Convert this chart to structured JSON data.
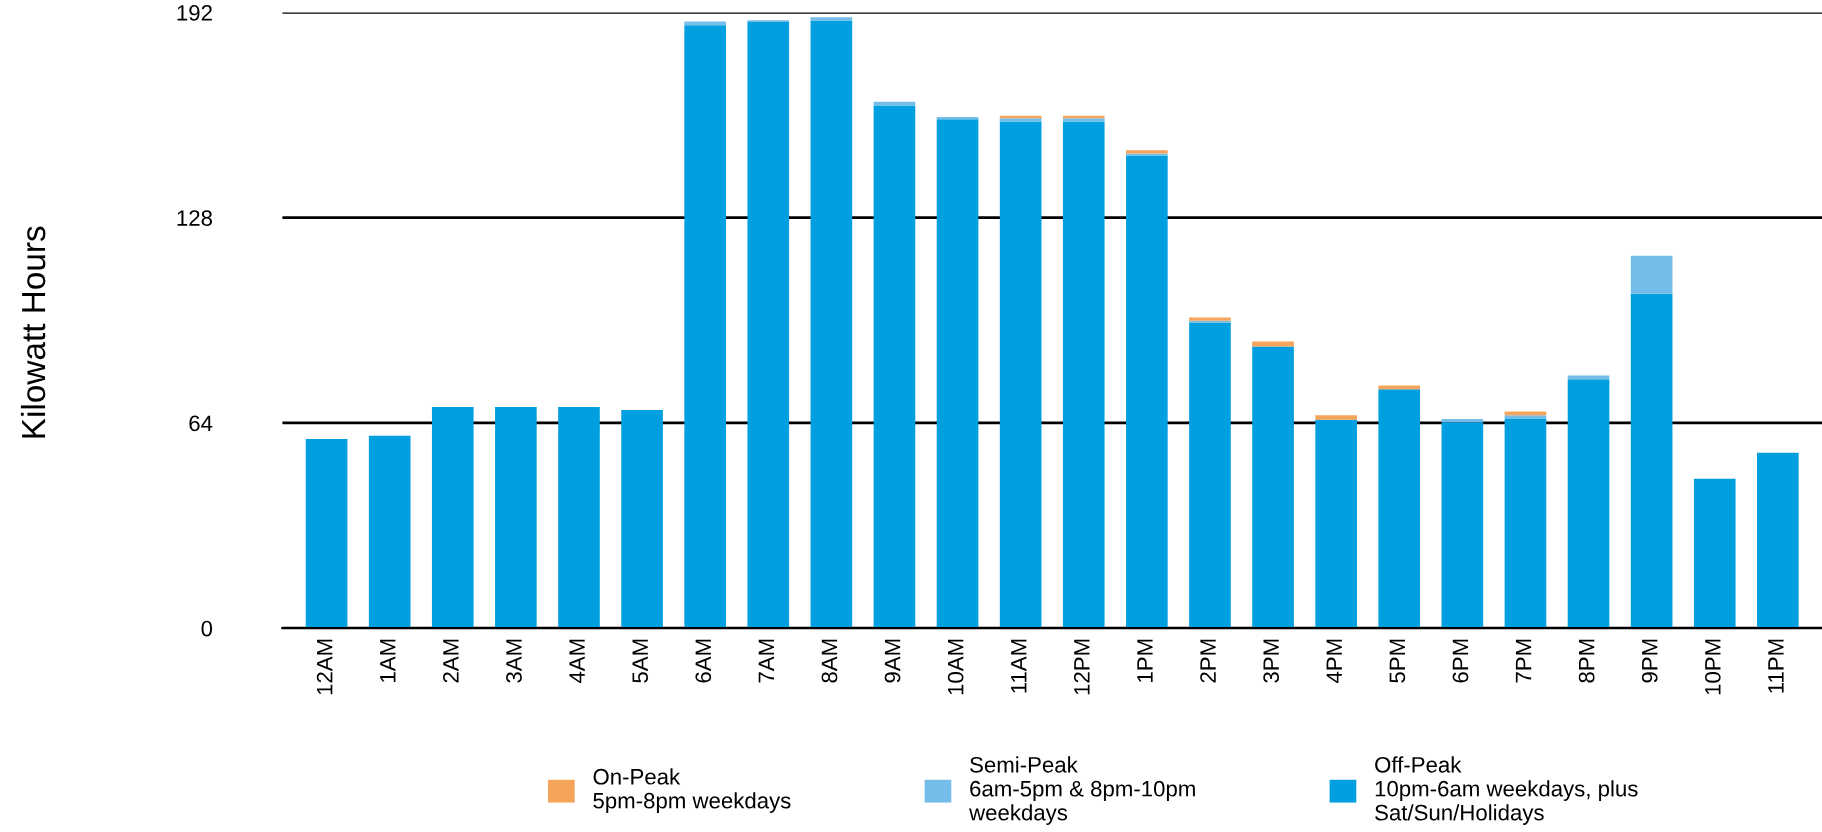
{
  "chart_data": {
    "type": "bar",
    "stacked": true,
    "ylabel": "Kilowatt Hours",
    "categories": [
      "12AM",
      "1AM",
      "2AM",
      "3AM",
      "4AM",
      "5AM",
      "6AM",
      "7AM",
      "8AM",
      "9AM",
      "10AM",
      "11AM",
      "12PM",
      "1PM",
      "2PM",
      "3PM",
      "4PM",
      "5PM",
      "6PM",
      "7PM",
      "8PM",
      "9PM",
      "10PM",
      "11PM"
    ],
    "series": [
      {
        "name": "Off-Peak\n10pm-6am weekdays, plus\nSat/Sun/Holidays",
        "color": "#009fe0",
        "values": [
          59,
          60,
          69,
          69,
          69,
          68,
          188,
          189,
          189.5,
          163,
          158.7,
          158,
          158,
          147.4,
          95.3,
          87.8,
          65,
          74.5,
          64.2,
          65.2,
          77.6,
          104.3,
          46.6,
          54.7
        ]
      },
      {
        "name": "Semi-Peak\n6am-5pm & 8pm-10pm\nweekdays",
        "color": "#74bde8",
        "values": [
          0,
          0,
          0,
          0,
          0,
          0,
          1.2,
          0.6,
          1,
          1.2,
          0.7,
          1,
          1,
          0.6,
          0.6,
          0,
          0,
          0,
          1,
          1.2,
          1.2,
          11.8,
          0,
          0
        ]
      },
      {
        "name": "On-Peak\n5pm-8pm weekdays",
        "color": "#f5a55a",
        "values": [
          0,
          0,
          0,
          0,
          0,
          0,
          0,
          0,
          0,
          0,
          0,
          0.8,
          0.8,
          1,
          1,
          1.6,
          1.4,
          1.2,
          0,
          1.2,
          0,
          0,
          0,
          0
        ]
      }
    ],
    "ylim": [
      0,
      192
    ],
    "yticks": [
      0,
      64,
      128,
      192
    ],
    "grid": "y",
    "legend": "bottom"
  }
}
